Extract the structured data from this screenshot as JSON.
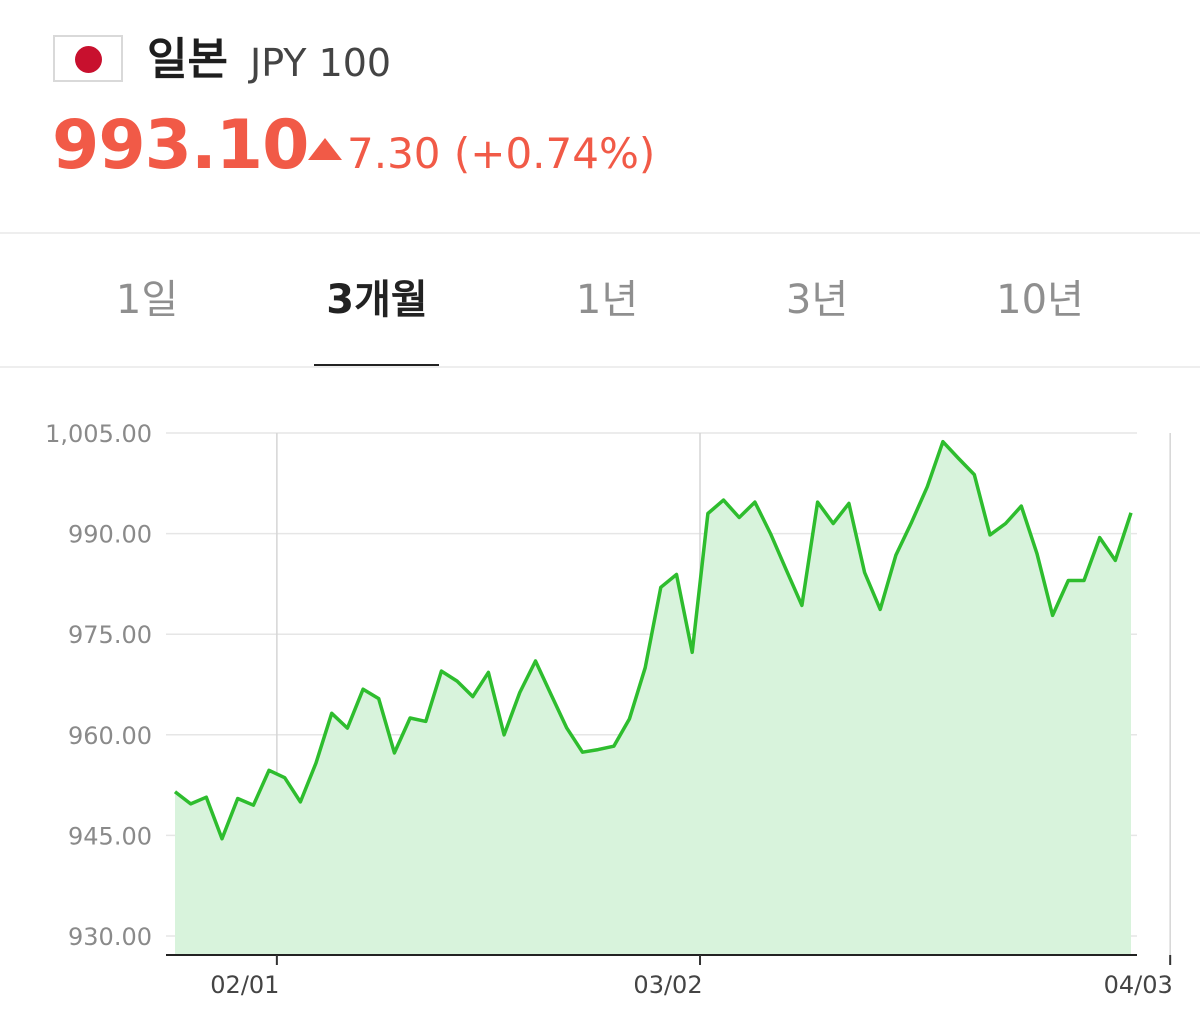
{
  "header": {
    "country": "일본",
    "currency": "JPY 100",
    "price": "993.10",
    "change": "7.30 (+0.74%)",
    "flag_icon": "japan-flag-icon",
    "up_icon": "triangle-up-icon",
    "accent_color": "#f15a47"
  },
  "tabs": [
    {
      "label": "1일",
      "active": false
    },
    {
      "label": "3개월",
      "active": true
    },
    {
      "label": "1년",
      "active": false
    },
    {
      "label": "3년",
      "active": false
    },
    {
      "label": "10년",
      "active": false
    }
  ],
  "chart_data": {
    "type": "area",
    "line_color": "#2ebd2e",
    "fill_color": "#d8f3dc",
    "ylim": [
      930,
      1005
    ],
    "y_ticks": [
      "1,005.00",
      "990.00",
      "975.00",
      "960.00",
      "945.00",
      "930.00"
    ],
    "y_tick_values": [
      1005,
      990,
      975,
      960,
      945,
      930
    ],
    "x_ticks": [
      {
        "label": "02/01",
        "index": 6.5
      },
      {
        "label": "03/02",
        "index": 33.5
      },
      {
        "label": "04/03",
        "index": 63.5
      }
    ],
    "grid": true,
    "values": [
      951.5,
      949.7,
      950.7,
      944.5,
      950.5,
      949.5,
      954.7,
      953.6,
      950.0,
      955.8,
      963.2,
      961.0,
      966.8,
      965.4,
      957.3,
      962.5,
      962.0,
      969.5,
      968.0,
      965.7,
      969.3,
      960.0,
      966.3,
      971.0,
      966.0,
      961.0,
      957.4,
      957.8,
      958.3,
      962.4,
      970.0,
      982.0,
      983.9,
      972.3,
      993.0,
      995.0,
      992.4,
      994.7,
      990.0,
      984.6,
      979.3,
      994.7,
      991.5,
      994.5,
      984.2,
      978.7,
      986.8,
      991.7,
      997.0,
      1003.7,
      1001.2,
      998.8,
      989.8,
      991.5,
      994.1,
      987.0,
      977.8,
      983.0,
      983.0,
      989.4,
      986.0,
      993.1
    ]
  }
}
